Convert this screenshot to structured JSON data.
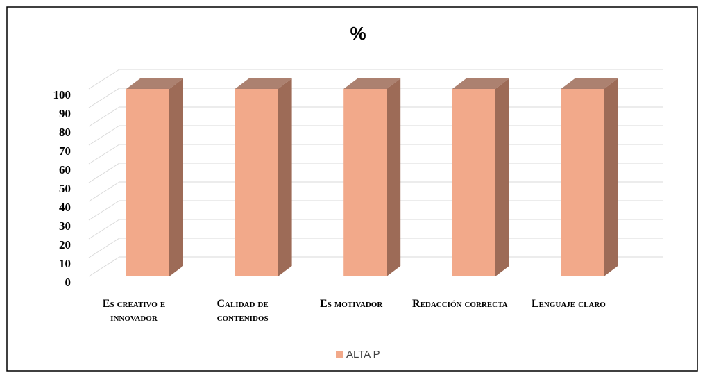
{
  "chart_data": {
    "type": "bar3d",
    "title": "%",
    "categories": [
      "Es creativo e innovador",
      "Calidad de contenidos",
      "Es motivador",
      "Redacción correcta",
      "Lenguaje claro"
    ],
    "series": [
      {
        "name": "ALTA P",
        "color": "#f2a98a",
        "side_color": "#9d6b57",
        "values": [
          100,
          100,
          100,
          100,
          100
        ]
      }
    ],
    "ylim": [
      0,
      100
    ],
    "yticks": [
      0,
      10,
      20,
      30,
      40,
      50,
      60,
      70,
      80,
      90,
      100
    ],
    "grid": true,
    "legend": "bottom"
  }
}
